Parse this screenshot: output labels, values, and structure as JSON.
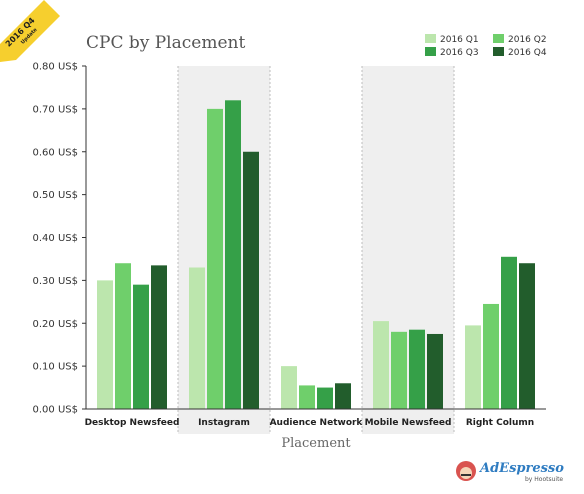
{
  "badge": {
    "line1": "2016 Q4",
    "line2": "Update"
  },
  "brand": {
    "name": "AdEspresso",
    "byline": "by Hootsuite"
  },
  "colors": {
    "q1": "#bce6ad",
    "q2": "#6fcf6b",
    "q3": "#35a048",
    "q4": "#225d2c",
    "shade": "#efefef",
    "badge": "#f6cf2e"
  },
  "chart_data": {
    "type": "bar",
    "title": "CPC by Placement",
    "xlabel": "Placement",
    "ylabel": "",
    "ylim": [
      0,
      0.8
    ],
    "yticks": [
      "0.00 US$",
      "0.10 US$",
      "0.20 US$",
      "0.30 US$",
      "0.40 US$",
      "0.50 US$",
      "0.60 US$",
      "0.70 US$",
      "0.80 US$"
    ],
    "categories": [
      "Desktop Newsfeed",
      "Instagram",
      "Audience Network",
      "Mobile Newsfeed",
      "Right Column"
    ],
    "series": [
      {
        "name": "2016 Q1",
        "values": [
          0.3,
          0.33,
          0.1,
          0.205,
          0.195
        ]
      },
      {
        "name": "2016 Q2",
        "values": [
          0.34,
          0.7,
          0.055,
          0.18,
          0.245
        ]
      },
      {
        "name": "2016 Q3",
        "values": [
          0.29,
          0.72,
          0.05,
          0.185,
          0.355
        ]
      },
      {
        "name": "2016 Q4",
        "values": [
          0.335,
          0.6,
          0.06,
          0.175,
          0.34
        ]
      }
    ],
    "legend": "top-right",
    "grid": false
  }
}
